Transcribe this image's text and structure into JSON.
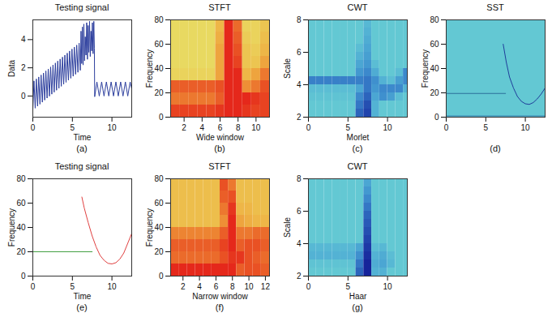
{
  "chart_data": [
    {
      "panel_label": "(a)",
      "type": "line",
      "title": "Testing signal",
      "x_label": "Time",
      "y_label": "Data",
      "xlim": [
        0,
        12.5
      ],
      "ylim": [
        -1.5,
        5.4
      ],
      "xticks": [
        0,
        5,
        10
      ],
      "yticks": [
        0,
        2,
        4
      ],
      "series": [
        {
          "color": "#2d3f9e",
          "x": [
            0,
            0.15,
            0.3,
            0.45,
            0.6,
            0.75,
            0.9,
            1.05,
            1.2,
            1.35,
            1.5,
            1.65,
            1.8,
            1.95,
            2.1,
            2.25,
            2.4,
            2.55,
            2.7,
            2.85,
            3.0,
            3.15,
            3.3,
            3.45,
            3.6,
            3.75,
            3.9,
            4.05,
            4.2,
            4.35,
            4.5,
            4.65,
            4.8,
            4.95,
            5.1,
            5.25,
            5.4,
            5.55,
            5.7,
            5.85,
            6.0,
            6.09,
            6.18,
            6.27,
            6.36,
            6.45,
            6.54,
            6.63,
            6.72,
            6.81,
            6.9,
            6.99,
            7.08,
            7.17,
            7.26,
            7.35,
            7.44,
            7.53,
            7.62,
            7.71,
            7.78,
            7.82,
            8.1,
            8.4,
            8.7,
            9.0,
            9.3,
            9.6,
            9.9,
            10.2,
            10.5,
            10.8,
            11.1,
            11.4,
            11.7,
            12.0,
            12.3,
            12.5
          ],
          "values": [
            -1,
            1.07,
            -0.86,
            1.21,
            -0.72,
            1.35,
            -0.58,
            1.49,
            -0.44,
            1.63,
            -0.29,
            1.78,
            -0.15,
            1.92,
            -0.01,
            2.06,
            0.13,
            2.2,
            0.27,
            2.34,
            0.41,
            2.48,
            0.55,
            2.62,
            0.69,
            2.76,
            0.83,
            2.9,
            0.97,
            3.04,
            1.12,
            3.19,
            1.26,
            3.33,
            1.4,
            3.47,
            1.54,
            3.61,
            1.68,
            3.75,
            1.82,
            4.6,
            2.3,
            4.9,
            2.2,
            5.1,
            2.5,
            4.2,
            2.9,
            5.2,
            2.6,
            5.0,
            3.1,
            5.3,
            2.8,
            4.6,
            3.2,
            5.2,
            3.0,
            5.3,
            3.4,
            -0.05,
            1,
            0,
            1,
            0,
            1,
            0,
            1,
            0,
            1,
            0,
            1,
            0,
            1,
            0,
            1,
            0.5
          ]
        }
      ]
    },
    {
      "panel_label": "(b)",
      "type": "heatmap",
      "title": "STFT",
      "x_label": "Wide window",
      "y_label": "Frequency",
      "color": "red",
      "xlim": [
        0.5,
        11.5
      ],
      "ylim": [
        0,
        80
      ],
      "xticks": [
        2,
        4,
        6,
        8,
        10
      ],
      "yticks": [
        0,
        20,
        40,
        60,
        80
      ],
      "x": [
        1,
        2,
        3,
        4,
        5,
        6,
        7,
        8,
        9,
        10,
        11
      ],
      "y": [
        5,
        15,
        25,
        35,
        45,
        55,
        65,
        75
      ],
      "zlim": [
        0,
        1
      ],
      "z": [
        [
          0.9,
          0.9,
          0.9,
          0.9,
          0.9,
          0.95,
          1,
          1,
          0.95,
          0.9,
          0.9
        ],
        [
          0.7,
          0.7,
          0.7,
          0.7,
          0.7,
          0.8,
          1,
          1,
          1,
          0.95,
          0.9
        ],
        [
          0.8,
          0.8,
          0.8,
          0.8,
          0.8,
          0.85,
          1,
          1,
          0.6,
          0.7,
          0.85
        ],
        [
          0.2,
          0.2,
          0.2,
          0.2,
          0.2,
          0.5,
          1,
          1,
          0.4,
          0.5,
          0.7
        ],
        [
          0.15,
          0.15,
          0.15,
          0.15,
          0.15,
          0.5,
          1,
          0.9,
          0.3,
          0.3,
          0.5
        ],
        [
          0.15,
          0.15,
          0.15,
          0.15,
          0.15,
          0.5,
          1,
          0.85,
          0.3,
          0.25,
          0.4
        ],
        [
          0.15,
          0.15,
          0.15,
          0.15,
          0.15,
          0.45,
          1,
          0.8,
          0.25,
          0.2,
          0.35
        ],
        [
          0.15,
          0.15,
          0.15,
          0.15,
          0.15,
          0.4,
          1,
          0.75,
          0.2,
          0.2,
          0.3
        ]
      ]
    },
    {
      "panel_label": "(c)",
      "type": "heatmap",
      "title": "CWT",
      "x_label": "Morlet",
      "y_label": "Scale",
      "color": "blue",
      "xlim": [
        0,
        12.5
      ],
      "ylim": [
        2,
        8
      ],
      "xticks": [
        0,
        5,
        10
      ],
      "yticks": [
        2,
        4,
        6,
        8
      ],
      "x": [
        0.5,
        1.5,
        2.5,
        3.5,
        4.5,
        5.5,
        6.5,
        7.5,
        8.5,
        9.5,
        10.5,
        11.5,
        12.5
      ],
      "y": [
        2.25,
        2.75,
        3.25,
        3.75,
        4.25,
        4.75,
        5.25,
        5.75,
        6.25,
        6.75,
        7.25,
        7.75
      ],
      "zlim": [
        0,
        1
      ],
      "z": [
        [
          0,
          0,
          0,
          0,
          0,
          0,
          0.7,
          0.85,
          0.2,
          0,
          0,
          0,
          0
        ],
        [
          0,
          0,
          0,
          0,
          0,
          0,
          0.6,
          0.8,
          0.2,
          0,
          0,
          0,
          0
        ],
        [
          0.05,
          0.05,
          0.05,
          0.05,
          0.05,
          0.05,
          0.5,
          0.7,
          0.3,
          0.45,
          0.35,
          0.1,
          0
        ],
        [
          0.1,
          0.1,
          0.1,
          0.1,
          0.1,
          0.1,
          0.3,
          0.6,
          0.4,
          0.5,
          0.5,
          0.5,
          0.2
        ],
        [
          0.55,
          0.55,
          0.55,
          0.55,
          0.55,
          0.55,
          0.55,
          0.6,
          0.45,
          0.2,
          0.1,
          0.35,
          0.5
        ],
        [
          0,
          0,
          0,
          0,
          0,
          0,
          0.4,
          0.5,
          0.25,
          0,
          0,
          0.1,
          0.5
        ],
        [
          0,
          0,
          0,
          0,
          0,
          0,
          0.3,
          0.4,
          0.1,
          0,
          0,
          0,
          0
        ],
        [
          0,
          0,
          0,
          0,
          0,
          0,
          0.2,
          0.35,
          0,
          0,
          0,
          0,
          0
        ],
        [
          0,
          0,
          0,
          0,
          0,
          0,
          0.1,
          0.3,
          0,
          0,
          0,
          0,
          0
        ],
        [
          0,
          0,
          0,
          0,
          0,
          0,
          0,
          0.25,
          0,
          0,
          0,
          0,
          0
        ],
        [
          0,
          0,
          0,
          0,
          0,
          0,
          0,
          0.2,
          0,
          0,
          0,
          0,
          0
        ],
        [
          0,
          0,
          0,
          0,
          0,
          0,
          0,
          0.15,
          0,
          0,
          0,
          0,
          0
        ]
      ]
    },
    {
      "panel_label": "(d)",
      "type": "line",
      "title": "SST",
      "y_label": "Frequency",
      "color": "#63c8d3",
      "xlim": [
        0,
        12.5
      ],
      "ylim": [
        0,
        80
      ],
      "xticks": [
        0,
        5,
        10
      ],
      "yticks": [
        0,
        20,
        40,
        60,
        80
      ],
      "series": [
        {
          "color": "#2b6f9a",
          "x": [
            0,
            7.5
          ],
          "values": [
            19.5,
            19.5
          ]
        },
        {
          "color": "#1f3d9a",
          "x": [
            7.2,
            7.6,
            8,
            8.5,
            9,
            9.5,
            10,
            10.5,
            11,
            11.5,
            12,
            12.5
          ],
          "values": [
            60,
            45,
            33,
            24,
            17,
            13,
            11,
            10.5,
            12,
            15,
            19,
            24
          ]
        },
        {
          "color": "#3a7fb0",
          "x": [
            0,
            12.5
          ],
          "values": [
            1,
            1
          ]
        }
      ]
    },
    {
      "panel_label": "(e)",
      "type": "line",
      "title": "Testing signal",
      "x_label": "Time",
      "y_label": "Frequency",
      "xlim": [
        0,
        12.5
      ],
      "ylim": [
        0,
        80
      ],
      "xticks": [
        0,
        5,
        10
      ],
      "yticks": [
        0,
        20,
        40,
        60,
        80
      ],
      "series": [
        {
          "color": "#44a044",
          "x": [
            0,
            7.5
          ],
          "values": [
            20,
            20
          ]
        },
        {
          "color": "#e04040",
          "x": [
            6.2,
            6.5,
            7,
            7.5,
            8,
            8.5,
            9,
            9.5,
            10,
            10.5,
            11,
            11.5,
            12,
            12.5
          ],
          "values": [
            65,
            56,
            44,
            33,
            24,
            17,
            13,
            10.5,
            10,
            11,
            14,
            19,
            27,
            35
          ]
        }
      ]
    },
    {
      "panel_label": "(f)",
      "type": "heatmap",
      "title": "STFT",
      "x_label": "Narrow window",
      "y_label": "Frequency",
      "color": "red",
      "xlim": [
        0.5,
        12.5
      ],
      "ylim": [
        0,
        80
      ],
      "xticks": [
        2,
        4,
        6,
        8,
        10,
        12
      ],
      "yticks": [
        0,
        20,
        40,
        60,
        80
      ],
      "x": [
        1,
        2,
        3,
        4,
        5,
        6,
        7,
        8,
        9,
        10,
        11,
        12
      ],
      "y": [
        5,
        15,
        25,
        35,
        45,
        55,
        65,
        75
      ],
      "zlim": [
        0,
        1
      ],
      "z": [
        [
          1,
          1,
          1,
          1,
          1,
          1,
          1,
          1,
          0.8,
          0.85,
          0.85,
          0.8
        ],
        [
          0.75,
          0.75,
          0.75,
          0.75,
          0.75,
          0.75,
          0.85,
          0.95,
          0.95,
          0.85,
          0.8,
          0.75
        ],
        [
          0.8,
          0.8,
          0.8,
          0.8,
          0.8,
          0.8,
          0.9,
          1,
          0.8,
          0.85,
          0.85,
          0.8
        ],
        [
          0.65,
          0.65,
          0.65,
          0.65,
          0.65,
          0.65,
          0.8,
          1,
          0.7,
          0.7,
          0.75,
          0.75
        ],
        [
          0.35,
          0.35,
          0.35,
          0.35,
          0.35,
          0.35,
          0.6,
          1,
          0.5,
          0.45,
          0.4,
          0.4
        ],
        [
          0.35,
          0.35,
          0.35,
          0.35,
          0.35,
          0.35,
          0.7,
          0.95,
          0.4,
          0.4,
          0.35,
          0.35
        ],
        [
          0.35,
          0.35,
          0.35,
          0.35,
          0.35,
          0.35,
          0.8,
          0.85,
          0.35,
          0.35,
          0.35,
          0.35
        ],
        [
          0.35,
          0.35,
          0.35,
          0.35,
          0.35,
          0.35,
          0.85,
          0.7,
          0.35,
          0.35,
          0.35,
          0.35
        ]
      ]
    },
    {
      "panel_label": "(g)",
      "type": "heatmap",
      "title": "CWT",
      "x_label": "Haar",
      "y_label": "Scale",
      "color": "blue",
      "xlim": [
        0,
        12.5
      ],
      "ylim": [
        2,
        8
      ],
      "xticks": [
        0,
        5,
        10
      ],
      "yticks": [
        2,
        4,
        6,
        8
      ],
      "x": [
        0.5,
        1.5,
        2.5,
        3.5,
        4.5,
        5.5,
        6.5,
        7.5,
        8.5,
        9.5,
        10.5,
        11.5,
        12.5
      ],
      "y": [
        2.25,
        2.75,
        3.25,
        3.75,
        4.25,
        4.75,
        5.25,
        5.75,
        6.25,
        6.75,
        7.25,
        7.75
      ],
      "zlim": [
        0,
        1
      ],
      "z": [
        [
          0,
          0,
          0,
          0,
          0,
          0,
          0.7,
          1,
          0.2,
          0.2,
          0,
          0,
          0
        ],
        [
          0.05,
          0.05,
          0.05,
          0.05,
          0.05,
          0.05,
          0.6,
          1,
          0.25,
          0.3,
          0.15,
          0,
          0
        ],
        [
          0.2,
          0.2,
          0.2,
          0.2,
          0.2,
          0.2,
          0.45,
          0.95,
          0.2,
          0.25,
          0.1,
          0,
          0
        ],
        [
          0.15,
          0.15,
          0.15,
          0.15,
          0.15,
          0.15,
          0.3,
          0.9,
          0.1,
          0.15,
          0,
          0,
          0
        ],
        [
          0,
          0,
          0,
          0,
          0,
          0,
          0,
          0.85,
          0,
          0,
          0,
          0,
          0
        ],
        [
          0,
          0,
          0,
          0,
          0,
          0,
          0,
          0.8,
          0,
          0,
          0,
          0,
          0
        ],
        [
          0,
          0,
          0,
          0,
          0,
          0,
          0,
          0.75,
          0,
          0,
          0,
          0,
          0
        ],
        [
          0,
          0,
          0,
          0,
          0,
          0,
          0,
          0.7,
          0,
          0,
          0,
          0,
          0
        ],
        [
          0,
          0,
          0,
          0,
          0,
          0,
          0,
          0.6,
          0,
          0,
          0,
          0,
          0
        ],
        [
          0,
          0,
          0,
          0,
          0,
          0,
          0,
          0.5,
          0,
          0,
          0,
          0,
          0
        ],
        [
          0,
          0,
          0,
          0,
          0,
          0,
          0,
          0.4,
          0,
          0,
          0,
          0,
          0
        ],
        [
          0,
          0,
          0,
          0,
          0,
          0,
          0,
          0.3,
          0,
          0,
          0,
          0,
          0
        ]
      ]
    }
  ]
}
